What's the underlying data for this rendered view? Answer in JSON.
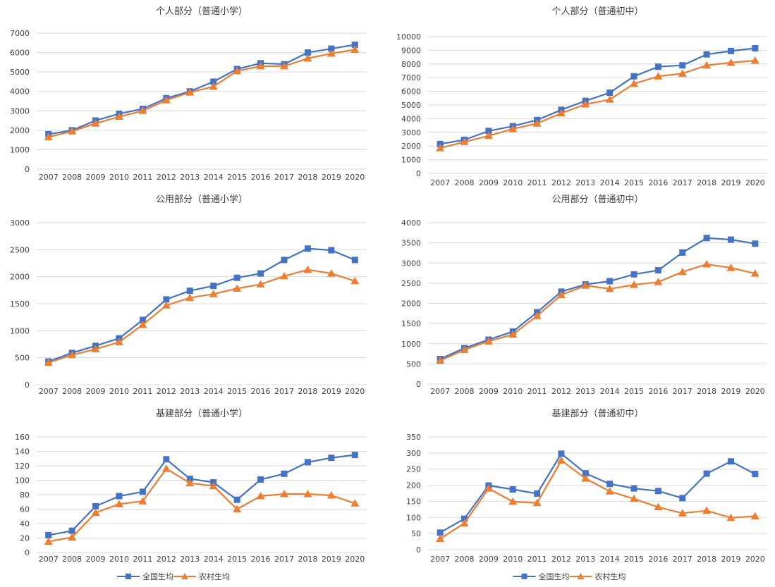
{
  "colors": {
    "national": "#4472C4",
    "rural": "#ED7D31",
    "grid": "#d9d9d9",
    "text": "#404040"
  },
  "legend": {
    "national": "全国生均",
    "rural": "农村生均"
  },
  "chart_data": [
    {
      "type": "line",
      "title": "个人部分（普通小学）",
      "categories": [
        "2007",
        "2008",
        "2009",
        "2010",
        "2011",
        "2012",
        "2013",
        "2014",
        "2015",
        "2016",
        "2017",
        "2018",
        "2019",
        "2020"
      ],
      "ylim": [
        0,
        7000
      ],
      "yticks": [
        0,
        1000,
        2000,
        3000,
        4000,
        5000,
        6000,
        7000
      ],
      "grid": true,
      "legend": "none",
      "series": [
        {
          "name": "全国生均",
          "marker": "square",
          "color": "#4472C4",
          "values": [
            1800,
            2000,
            2500,
            2850,
            3100,
            3650,
            4000,
            4500,
            5150,
            5450,
            5400,
            6000,
            6200,
            6400
          ]
        },
        {
          "name": "农村生均",
          "marker": "triangle",
          "color": "#ED7D31",
          "values": [
            1650,
            1950,
            2350,
            2700,
            3000,
            3550,
            3950,
            4250,
            5050,
            5300,
            5300,
            5700,
            5950,
            6150
          ]
        }
      ]
    },
    {
      "type": "line",
      "title": "个人部分（普通初中）",
      "categories": [
        "2007",
        "2008",
        "2009",
        "2010",
        "2011",
        "2012",
        "2013",
        "2014",
        "2015",
        "2016",
        "2017",
        "2018",
        "2019",
        "2020"
      ],
      "ylim": [
        0,
        10000
      ],
      "yticks": [
        0,
        1000,
        2000,
        3000,
        4000,
        5000,
        6000,
        7000,
        8000,
        9000,
        10000
      ],
      "grid": true,
      "legend": "none",
      "series": [
        {
          "name": "全国生均",
          "marker": "square",
          "color": "#4472C4",
          "values": [
            2150,
            2450,
            3100,
            3450,
            3900,
            4650,
            5300,
            5900,
            7100,
            7800,
            7900,
            8700,
            8950,
            9150
          ]
        },
        {
          "name": "农村生均",
          "marker": "triangle",
          "color": "#ED7D31",
          "values": [
            1850,
            2300,
            2750,
            3250,
            3650,
            4400,
            5050,
            5400,
            6550,
            7100,
            7300,
            7900,
            8100,
            8250
          ]
        }
      ]
    },
    {
      "type": "line",
      "title": "公用部分（普通小学）",
      "categories": [
        "2007",
        "2008",
        "2009",
        "2010",
        "2011",
        "2012",
        "2013",
        "2014",
        "2015",
        "2016",
        "2017",
        "2018",
        "2019",
        "2020"
      ],
      "ylim": [
        0,
        3000
      ],
      "yticks": [
        0,
        500,
        1000,
        1500,
        2000,
        2500,
        3000
      ],
      "grid": true,
      "legend": "none",
      "series": [
        {
          "name": "全国生均",
          "marker": "square",
          "color": "#4472C4",
          "values": [
            430,
            590,
            720,
            860,
            1200,
            1580,
            1740,
            1830,
            1980,
            2060,
            2310,
            2520,
            2490,
            2310
          ]
        },
        {
          "name": "农村生均",
          "marker": "triangle",
          "color": "#ED7D31",
          "values": [
            410,
            550,
            660,
            790,
            1110,
            1470,
            1610,
            1680,
            1780,
            1860,
            2010,
            2130,
            2060,
            1920
          ]
        }
      ]
    },
    {
      "type": "line",
      "title": "公用部分（普通初中）",
      "categories": [
        "2007",
        "2008",
        "2009",
        "2010",
        "2011",
        "2012",
        "2013",
        "2014",
        "2015",
        "2016",
        "2017",
        "2018",
        "2019",
        "2020"
      ],
      "ylim": [
        0,
        4000
      ],
      "yticks": [
        0,
        500,
        1000,
        1500,
        2000,
        2500,
        3000,
        3500,
        4000
      ],
      "grid": true,
      "legend": "none",
      "series": [
        {
          "name": "全国生均",
          "marker": "square",
          "color": "#4472C4",
          "values": [
            620,
            890,
            1100,
            1300,
            1780,
            2290,
            2470,
            2550,
            2720,
            2820,
            3260,
            3620,
            3580,
            3480
          ]
        },
        {
          "name": "农村生均",
          "marker": "triangle",
          "color": "#ED7D31",
          "values": [
            580,
            850,
            1060,
            1230,
            1690,
            2210,
            2440,
            2360,
            2460,
            2530,
            2780,
            2970,
            2880,
            2740
          ]
        }
      ]
    },
    {
      "type": "line",
      "title": "基建部分（普通小学）",
      "categories": [
        "2007",
        "2008",
        "2009",
        "2010",
        "2011",
        "2012",
        "2013",
        "2014",
        "2015",
        "2016",
        "2017",
        "2018",
        "2019",
        "2020"
      ],
      "ylim": [
        0,
        160
      ],
      "yticks": [
        0,
        20,
        40,
        60,
        80,
        100,
        120,
        140,
        160
      ],
      "grid": true,
      "legend": "bottom",
      "series": [
        {
          "name": "全国生均",
          "marker": "square",
          "color": "#4472C4",
          "values": [
            24,
            30,
            64,
            78,
            84,
            129,
            102,
            97,
            73,
            101,
            109,
            125,
            131,
            135
          ]
        },
        {
          "name": "农村生均",
          "marker": "triangle",
          "color": "#ED7D31",
          "values": [
            15,
            21,
            55,
            67,
            71,
            116,
            96,
            92,
            60,
            78,
            81,
            81,
            79,
            68
          ]
        }
      ]
    },
    {
      "type": "line",
      "title": "基建部分（普通初中）",
      "categories": [
        "2007",
        "2008",
        "2009",
        "2010",
        "2011",
        "2012",
        "2013",
        "2014",
        "2015",
        "2016",
        "2017",
        "2018",
        "2019",
        "2020"
      ],
      "ylim": [
        0,
        350
      ],
      "yticks": [
        0,
        50,
        100,
        150,
        200,
        250,
        300,
        350
      ],
      "grid": true,
      "legend": "bottom",
      "series": [
        {
          "name": "全国生均",
          "marker": "square",
          "color": "#4472C4",
          "values": [
            53,
            96,
            199,
            187,
            174,
            298,
            237,
            204,
            190,
            182,
            160,
            236,
            274,
            235
          ]
        },
        {
          "name": "农村生均",
          "marker": "triangle",
          "color": "#ED7D31",
          "values": [
            34,
            82,
            190,
            149,
            145,
            277,
            221,
            181,
            158,
            132,
            113,
            121,
            99,
            104
          ]
        }
      ]
    }
  ]
}
